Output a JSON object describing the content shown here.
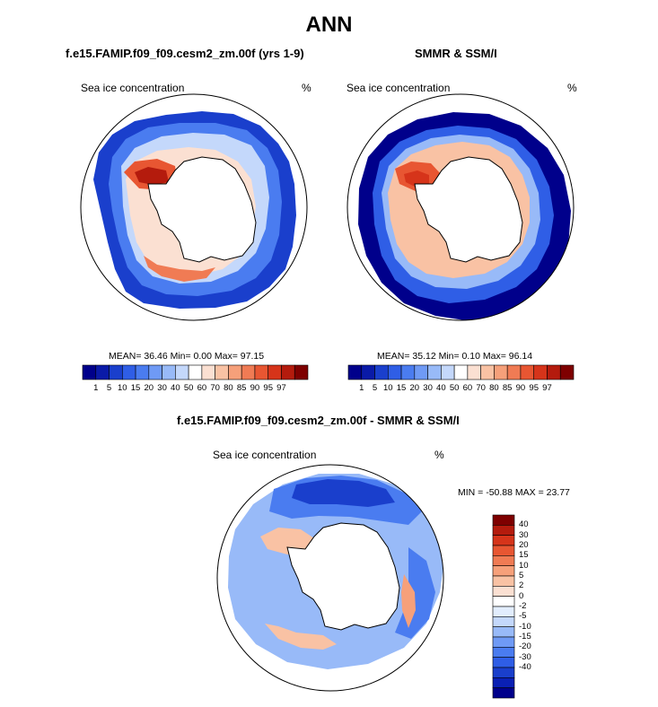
{
  "main_title": "ANN",
  "colors": {
    "seq": [
      "#00008b",
      "#0a1aa8",
      "#1a3fcc",
      "#2f5ee6",
      "#4a7cf0",
      "#6f9af5",
      "#98baf8",
      "#c4d8fb",
      "#ffffff",
      "#fbe0d2",
      "#f9c2a4",
      "#f6a07a",
      "#f07b54",
      "#e85632",
      "#d6341a",
      "#b41b0d",
      "#7e0000"
    ],
    "diff": [
      "#00008b",
      "#0a20b4",
      "#1a3fcc",
      "#2f5ee6",
      "#4a7cf0",
      "#6f9af5",
      "#98baf8",
      "#c4d8fb",
      "#e2edfd",
      "#ffffff",
      "#fbe0d2",
      "#f9c2a4",
      "#f6a07a",
      "#f07b54",
      "#e85632",
      "#d6341a",
      "#b41b0d",
      "#7e0000"
    ],
    "land": "#ffffff",
    "coast": "#000000"
  },
  "panels": {
    "model": {
      "title": "f.e15.FAMIP.f09_f09.cesm2_zm.00f (yrs 1-9)",
      "var": "Sea ice concentration",
      "units": "%",
      "stats": "MEAN=  36.46  Min=   0.00  Max=  97.15"
    },
    "obs": {
      "title": "SMMR & SSM/I",
      "var": "Sea ice concentration",
      "units": "%",
      "stats": "MEAN=  35.12  Min=   0.10  Max=  96.14"
    },
    "diff": {
      "title": "f.e15.FAMIP.f09_f09.cesm2_zm.00f - SMMR & SSM/I",
      "var": "Sea ice concentration",
      "units": "%",
      "stats": "MIN = -50.88 MAX =  23.77"
    }
  },
  "seq_levels": [
    "1",
    "5",
    "10",
    "15",
    "20",
    "30",
    "40",
    "50",
    "60",
    "70",
    "80",
    "85",
    "90",
    "95",
    "97"
  ],
  "diff_levels": [
    "40",
    "30",
    "20",
    "15",
    "10",
    "5",
    "2",
    "0",
    "-2",
    "-5",
    "-10",
    "-15",
    "-20",
    "-30",
    "-40"
  ]
}
